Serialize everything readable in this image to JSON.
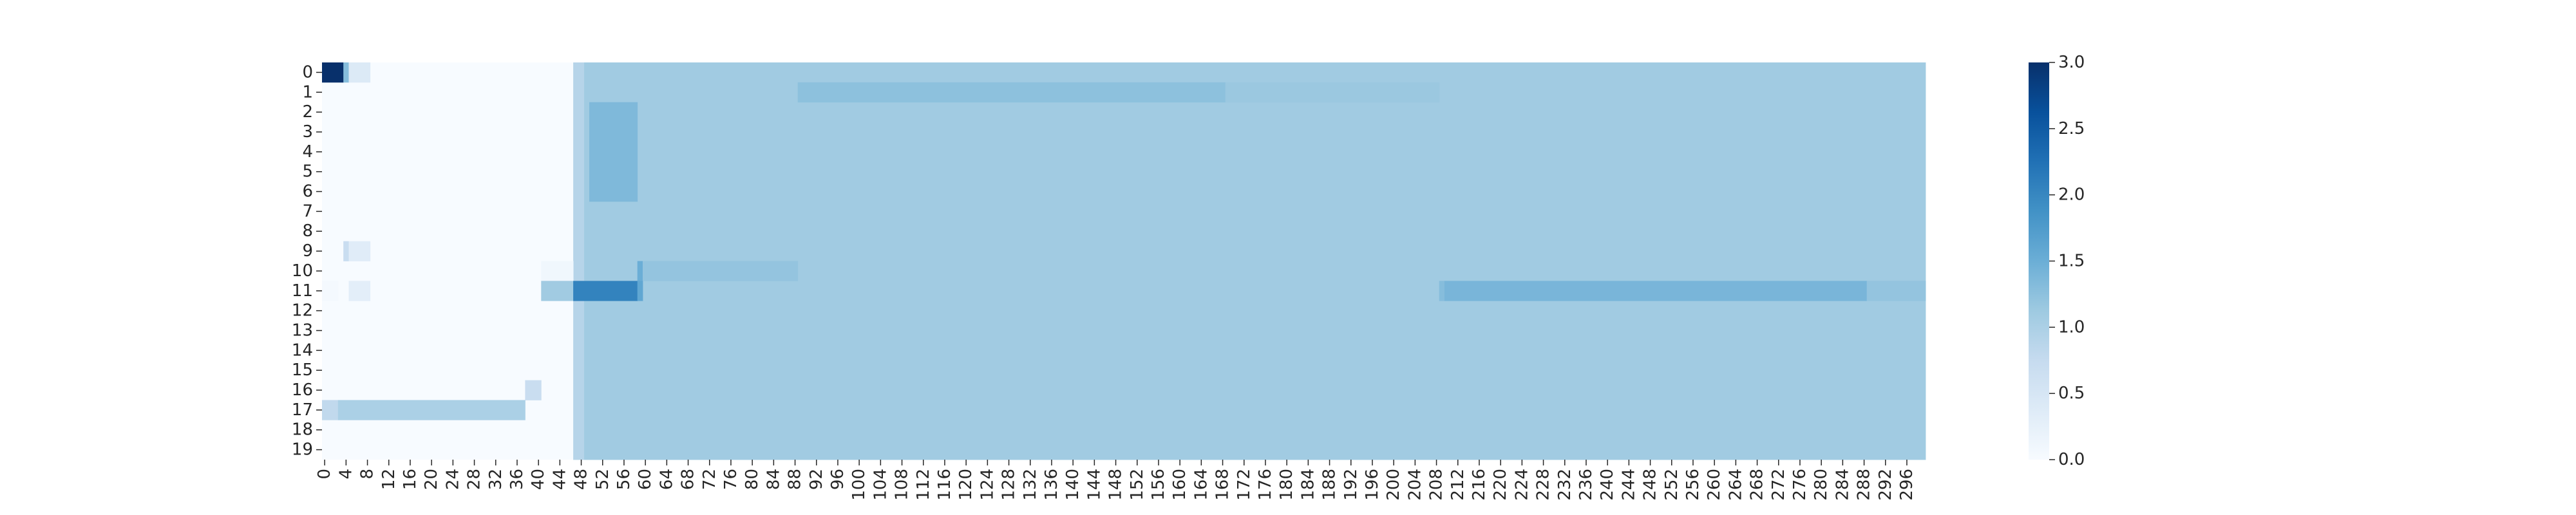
{
  "chart_data": {
    "type": "heatmap",
    "title": "",
    "xlabel": "",
    "ylabel": "",
    "n_rows": 20,
    "n_cols": 300,
    "row_labels": [
      "0",
      "1",
      "2",
      "3",
      "4",
      "5",
      "6",
      "7",
      "8",
      "9",
      "10",
      "11",
      "12",
      "13",
      "14",
      "15",
      "16",
      "17",
      "18",
      "19"
    ],
    "x_tick_step": 4,
    "x_tick_labels": [
      "0",
      "4",
      "8",
      "12",
      "16",
      "20",
      "24",
      "28",
      "32",
      "36",
      "40",
      "44",
      "48",
      "52",
      "56",
      "60",
      "64",
      "68",
      "72",
      "76",
      "80",
      "84",
      "88",
      "92",
      "96",
      "100",
      "104",
      "108",
      "112",
      "116",
      "120",
      "124",
      "128",
      "132",
      "136",
      "140",
      "144",
      "148",
      "152",
      "156",
      "160",
      "164",
      "168",
      "172",
      "176",
      "180",
      "184",
      "188",
      "192",
      "196",
      "200",
      "204",
      "208",
      "212",
      "216",
      "220",
      "224",
      "228",
      "232",
      "236",
      "240",
      "244",
      "248",
      "252",
      "256",
      "260",
      "264",
      "268",
      "272",
      "276",
      "280",
      "284",
      "288",
      "292",
      "296"
    ],
    "colormap": "Blues",
    "color_range": [
      0,
      3
    ],
    "colorbar_ticks": [
      "0.0",
      "0.5",
      "1.0",
      "1.5",
      "2.0",
      "2.5",
      "3.0"
    ],
    "default_value": 0,
    "regions": [
      {
        "rows": [
          0,
          19
        ],
        "cols": [
          49,
          299
        ],
        "value": 1.1
      },
      {
        "rows": [
          0,
          19
        ],
        "cols": [
          47,
          48
        ],
        "value": 0.9
      },
      {
        "rows": [
          0,
          0
        ],
        "cols": [
          0,
          3
        ],
        "value": 3.0
      },
      {
        "rows": [
          0,
          0
        ],
        "cols": [
          4,
          4
        ],
        "value": 1.3
      },
      {
        "rows": [
          0,
          0
        ],
        "cols": [
          5,
          8
        ],
        "value": 0.4
      },
      {
        "rows": [
          1,
          1
        ],
        "cols": [
          89,
          168
        ],
        "value": 1.25
      },
      {
        "rows": [
          1,
          1
        ],
        "cols": [
          169,
          208
        ],
        "value": 1.15
      },
      {
        "rows": [
          2,
          6
        ],
        "cols": [
          50,
          58
        ],
        "value": 1.35
      },
      {
        "rows": [
          9,
          9
        ],
        "cols": [
          4,
          4
        ],
        "value": 0.7
      },
      {
        "rows": [
          9,
          9
        ],
        "cols": [
          5,
          8
        ],
        "value": 0.35
      },
      {
        "rows": [
          10,
          10
        ],
        "cols": [
          41,
          46
        ],
        "value": 0.1
      },
      {
        "rows": [
          10,
          10
        ],
        "cols": [
          59,
          59
        ],
        "value": 1.5
      },
      {
        "rows": [
          10,
          10
        ],
        "cols": [
          60,
          88
        ],
        "value": 1.2
      },
      {
        "rows": [
          11,
          11
        ],
        "cols": [
          0,
          2
        ],
        "value": 0.05
      },
      {
        "rows": [
          11,
          11
        ],
        "cols": [
          5,
          8
        ],
        "value": 0.3
      },
      {
        "rows": [
          11,
          11
        ],
        "cols": [
          41,
          46
        ],
        "value": 1.1
      },
      {
        "rows": [
          11,
          11
        ],
        "cols": [
          47,
          58
        ],
        "value": 2.05
      },
      {
        "rows": [
          11,
          11
        ],
        "cols": [
          59,
          59
        ],
        "value": 1.6
      },
      {
        "rows": [
          11,
          11
        ],
        "cols": [
          209,
          209
        ],
        "value": 1.3
      },
      {
        "rows": [
          11,
          11
        ],
        "cols": [
          210,
          288
        ],
        "value": 1.4
      },
      {
        "rows": [
          11,
          11
        ],
        "cols": [
          289,
          299
        ],
        "value": 1.2
      },
      {
        "rows": [
          16,
          16
        ],
        "cols": [
          38,
          40
        ],
        "value": 0.7
      },
      {
        "rows": [
          17,
          17
        ],
        "cols": [
          0,
          2
        ],
        "value": 0.8
      },
      {
        "rows": [
          17,
          17
        ],
        "cols": [
          3,
          37
        ],
        "value": 1.0
      }
    ]
  }
}
